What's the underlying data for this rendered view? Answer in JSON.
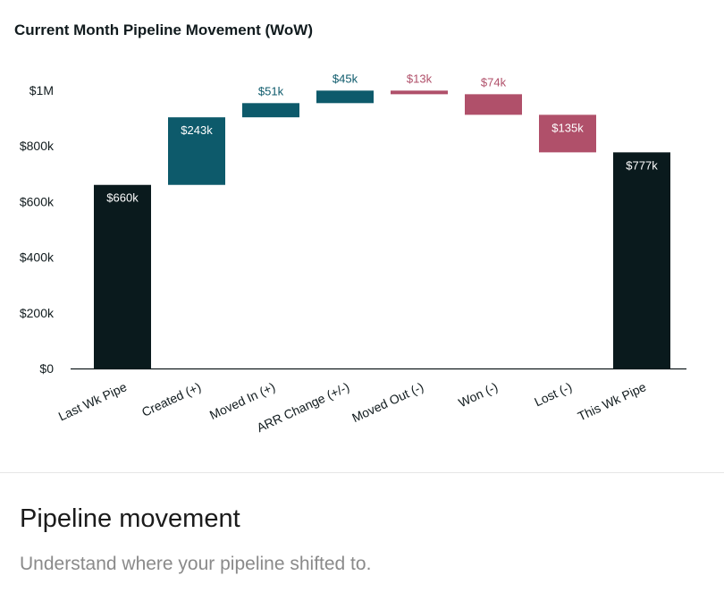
{
  "chart_data": {
    "type": "waterfall",
    "title": "Current Month Pipeline Movement (WoW)",
    "xlabel": "",
    "ylabel": "",
    "ylim": [
      0,
      1000
    ],
    "y_unit": "$k",
    "y_ticks": [
      {
        "value": 0,
        "label": "$0"
      },
      {
        "value": 200,
        "label": "$200k"
      },
      {
        "value": 400,
        "label": "$400k"
      },
      {
        "value": 600,
        "label": "$600k"
      },
      {
        "value": 800,
        "label": "$800k"
      },
      {
        "value": 1000,
        "label": "$1M"
      }
    ],
    "grid": false,
    "categories": [
      "Last Wk Pipe",
      "Created (+)",
      "Moved In (+)",
      "ARR Change (+/-)",
      "Moved Out (-)",
      "Won (-)",
      "Lost (-)",
      "This Wk Pipe"
    ],
    "steps": [
      {
        "label": "$660k",
        "start": 0,
        "end": 660,
        "kind": "total"
      },
      {
        "label": "$243k",
        "start": 660,
        "end": 903,
        "kind": "increase"
      },
      {
        "label": "$51k",
        "start": 903,
        "end": 954,
        "kind": "increase"
      },
      {
        "label": "$45k",
        "start": 954,
        "end": 999,
        "kind": "increase"
      },
      {
        "label": "$13k",
        "start": 999,
        "end": 986,
        "kind": "decrease"
      },
      {
        "label": "$74k",
        "start": 986,
        "end": 912,
        "kind": "decrease"
      },
      {
        "label": "$135k",
        "start": 912,
        "end": 777,
        "kind": "decrease"
      },
      {
        "label": "$777k",
        "start": 0,
        "end": 777,
        "kind": "total"
      }
    ],
    "colors": {
      "total": "#0a1a1d",
      "increase": "#0d5a6b",
      "decrease": "#b0506a",
      "axis": "#111b1e",
      "text": "#111b1e"
    }
  },
  "footer": {
    "title": "Pipeline movement",
    "subtitle": "Understand where your pipeline shifted to."
  }
}
